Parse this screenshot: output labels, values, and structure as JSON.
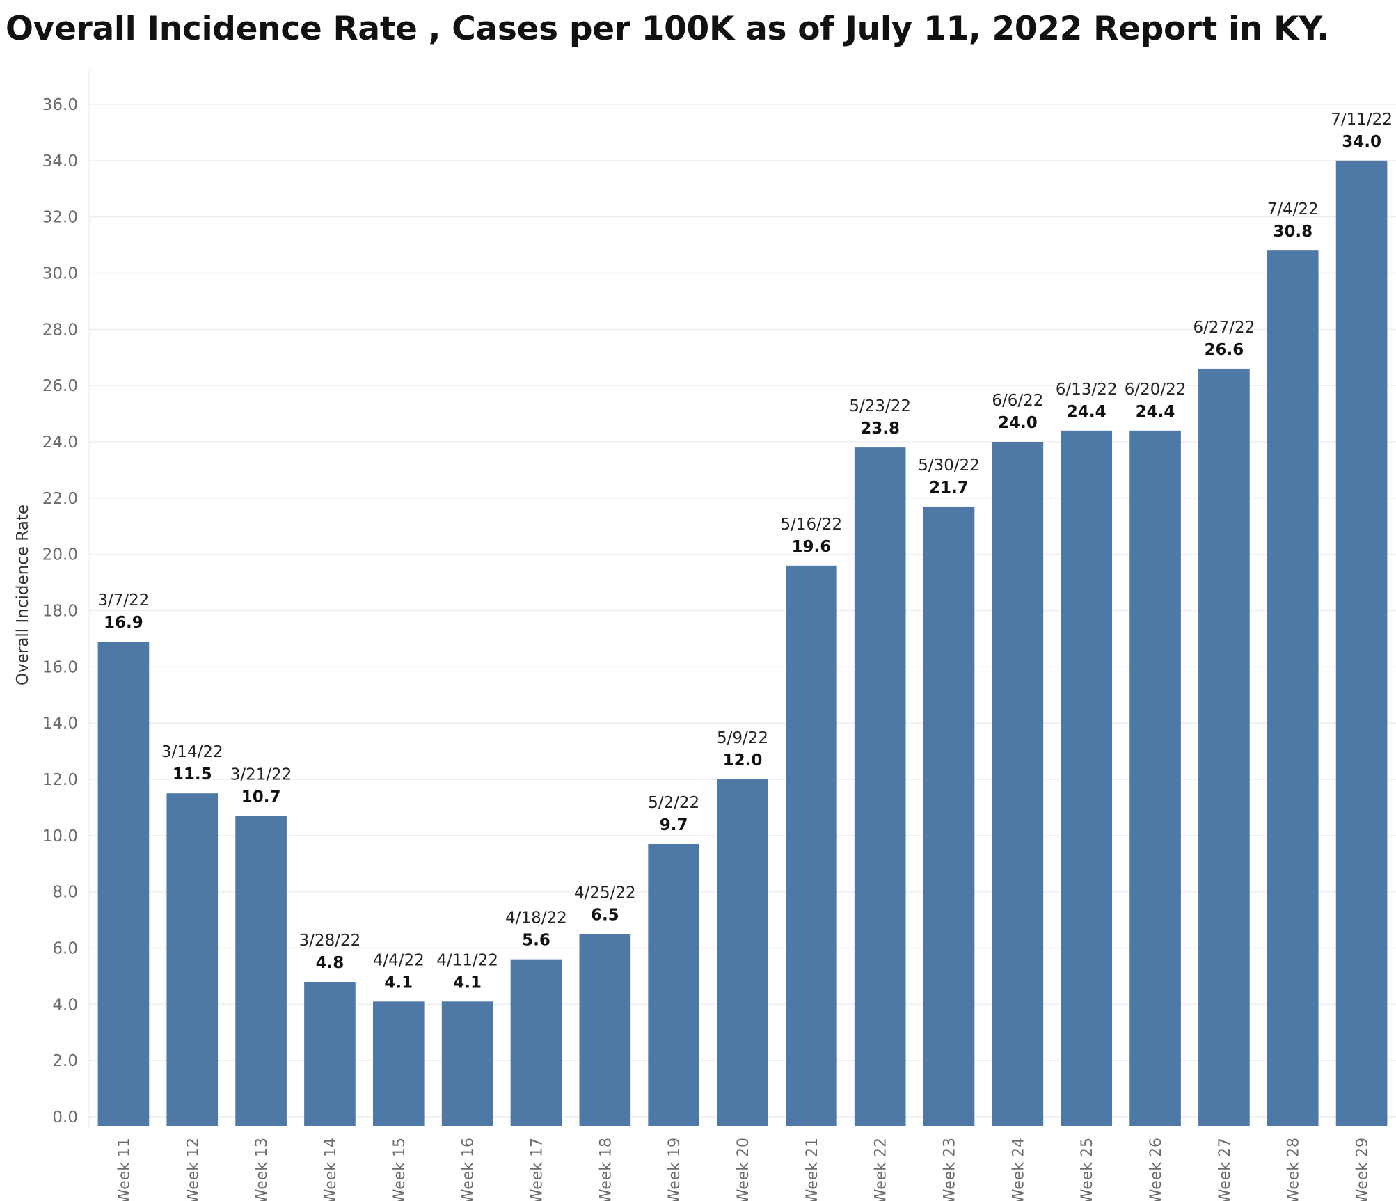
{
  "chart_data": {
    "type": "bar",
    "title": "Overall Incidence Rate , Cases per 100K as of July 11, 2022 Report in KY.",
    "xlabel": "",
    "ylabel": "Overall Incidence Rate",
    "ylim": [
      0,
      36
    ],
    "ytick_step": 2,
    "grid": true,
    "legend": "none",
    "bar_color": "#4e78a6",
    "categories": [
      "Week 11",
      "Week 12",
      "Week 13",
      "Week 14",
      "Week 15",
      "Week 16",
      "Week 17",
      "Week 18",
      "Week 19",
      "Week 20",
      "Week 21",
      "Week 22",
      "Week 23",
      "Week 24",
      "Week 25",
      "Week 26",
      "Week 27",
      "Week 28",
      "Week 29"
    ],
    "dates": [
      "3/7/22",
      "3/14/22",
      "3/21/22",
      "3/28/22",
      "4/4/22",
      "4/11/22",
      "4/18/22",
      "4/25/22",
      "5/2/22",
      "5/9/22",
      "5/16/22",
      "5/23/22",
      "5/30/22",
      "6/6/22",
      "6/13/22",
      "6/20/22",
      "6/27/22",
      "7/4/22",
      "7/11/22"
    ],
    "values": [
      16.9,
      11.5,
      10.7,
      4.8,
      4.1,
      4.1,
      5.6,
      6.5,
      9.7,
      12.0,
      19.6,
      23.8,
      21.7,
      24.0,
      24.4,
      24.4,
      26.6,
      30.8,
      34.0
    ]
  }
}
